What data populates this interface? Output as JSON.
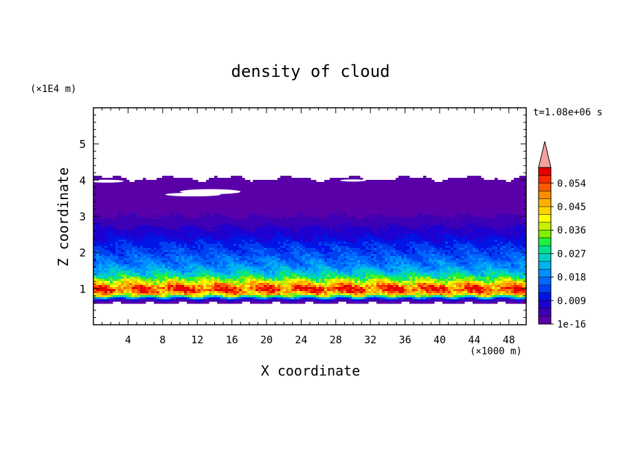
{
  "chart_data": {
    "type": "heatmap",
    "title": "density of cloud",
    "xlabel": "X coordinate",
    "ylabel": "Z coordinate",
    "x_unit": "(×1000 m)",
    "y_unit": "(×1E4 m)",
    "time_label": "t=1.08e+06 s",
    "xlim": [
      0,
      50
    ],
    "ylim": [
      0,
      6
    ],
    "x_ticks": [
      4,
      8,
      12,
      16,
      20,
      24,
      28,
      32,
      36,
      40,
      44,
      48
    ],
    "y_ticks": [
      1,
      2,
      3,
      4,
      5
    ],
    "colorbar": {
      "tick_labels": [
        "1e-16",
        "0.009",
        "0.018",
        "0.027",
        "0.036",
        "0.045",
        "0.054"
      ],
      "levels": [
        0,
        0.003,
        0.006,
        0.009,
        0.012,
        0.015,
        0.018,
        0.021,
        0.024,
        0.027,
        0.03,
        0.033,
        0.036,
        0.039,
        0.042,
        0.045,
        0.048,
        0.051,
        0.054,
        0.057,
        0.06
      ],
      "colors": [
        "#5a00a8",
        "#3d00b4",
        "#1e00d0",
        "#0014e6",
        "#0040f0",
        "#0068ff",
        "#0090ff",
        "#00b4f0",
        "#00d0c8",
        "#00e090",
        "#20f040",
        "#80f000",
        "#c8f000",
        "#ffff00",
        "#ffd200",
        "#ffb000",
        "#ff8c00",
        "#ff5a00",
        "#ff2a00",
        "#e60000"
      ],
      "over_color": "#f5a0a0"
    },
    "profile": {
      "z": [
        0.6,
        0.68,
        0.72,
        0.78,
        0.85,
        0.92,
        1.0,
        1.08,
        1.15,
        1.25,
        1.35,
        1.45,
        1.55,
        1.7,
        1.85,
        2.0,
        2.2,
        2.4,
        2.6,
        2.8,
        3.0,
        3.3,
        3.6,
        3.85,
        3.95,
        4.05
      ],
      "density": [
        0,
        0.006,
        0.012,
        0.03,
        0.045,
        0.052,
        0.056,
        0.05,
        0.042,
        0.035,
        0.028,
        0.024,
        0.021,
        0.018,
        0.016,
        0.014,
        0.012,
        0.009,
        0.007,
        0.005,
        0.003,
        0.0015,
        0.0008,
        0.0004,
        0.0001,
        0
      ]
    }
  }
}
